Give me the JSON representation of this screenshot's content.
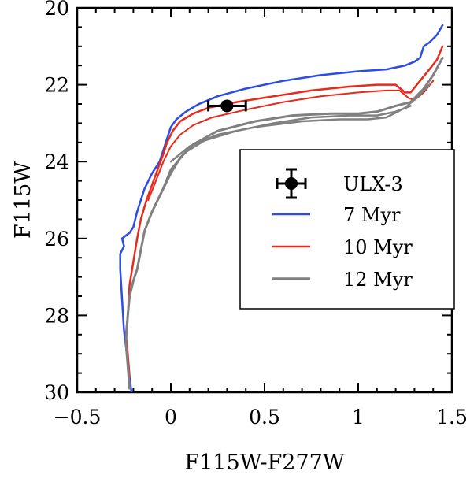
{
  "chart_data": {
    "type": "line",
    "xlabel": "F115W-F277W",
    "ylabel": "F115W",
    "xlim": [
      -0.5,
      1.5
    ],
    "ylim": [
      30,
      20
    ],
    "y_inverted": true,
    "x_ticks": [
      -0.5,
      0,
      0.5,
      1,
      1.5
    ],
    "x_tick_labels": [
      "−0.5",
      "0",
      "0.5",
      "1",
      "1.5"
    ],
    "y_ticks": [
      20,
      22,
      24,
      26,
      28,
      30
    ],
    "y_tick_labels": [
      "20",
      "22",
      "24",
      "26",
      "28",
      "30"
    ],
    "legend": {
      "position": "center-right",
      "entries": [
        {
          "label": "ULX-3",
          "kind": "errorbar-point",
          "color": "#000000"
        },
        {
          "label": "7 Myr",
          "kind": "line",
          "color": "#2b4ce6"
        },
        {
          "label": "10 Myr",
          "kind": "line",
          "color": "#e8291c"
        },
        {
          "label": "12 Myr",
          "kind": "line",
          "color": "#808080"
        }
      ]
    },
    "point": {
      "name": "ULX-3",
      "color": "#000000",
      "x": 0.3,
      "y": 22.55,
      "xerr": [
        0.1,
        0.1
      ],
      "yerr": [
        0.1,
        0.1
      ]
    },
    "series": [
      {
        "name": "7 Myr",
        "color": "#2b4ce6",
        "width": 2.5,
        "points": [
          [
            -0.21,
            30.0
          ],
          [
            -0.22,
            29.6
          ],
          [
            -0.23,
            29.2
          ],
          [
            -0.25,
            28.4
          ],
          [
            -0.26,
            27.6
          ],
          [
            -0.27,
            26.8
          ],
          [
            -0.27,
            26.4
          ],
          [
            -0.25,
            26.2
          ],
          [
            -0.26,
            26.0
          ],
          [
            -0.22,
            25.85
          ],
          [
            -0.2,
            25.7
          ],
          [
            -0.18,
            25.3
          ],
          [
            -0.16,
            25.0
          ],
          [
            -0.14,
            24.7
          ],
          [
            -0.1,
            24.3
          ],
          [
            -0.06,
            24.0
          ],
          [
            -0.04,
            23.7
          ],
          [
            -0.02,
            23.4
          ],
          [
            0.0,
            23.1
          ],
          [
            0.03,
            22.9
          ],
          [
            0.08,
            22.7
          ],
          [
            0.15,
            22.5
          ],
          [
            0.25,
            22.3
          ],
          [
            0.4,
            22.1
          ],
          [
            0.6,
            21.9
          ],
          [
            0.8,
            21.75
          ],
          [
            1.0,
            21.65
          ],
          [
            1.15,
            21.6
          ],
          [
            1.25,
            21.5
          ],
          [
            1.3,
            21.4
          ],
          [
            1.33,
            21.3
          ],
          [
            1.35,
            21.0
          ],
          [
            1.38,
            20.9
          ],
          [
            1.42,
            20.7
          ],
          [
            1.45,
            20.45
          ]
        ]
      },
      {
        "name": "10 Myr",
        "color": "#e8291c",
        "width": 2.5,
        "points": [
          [
            -0.22,
            29.6
          ],
          [
            -0.23,
            29.0
          ],
          [
            -0.24,
            28.5
          ],
          [
            -0.23,
            28.0
          ],
          [
            -0.22,
            27.2
          ],
          [
            -0.2,
            26.6
          ],
          [
            -0.18,
            26.0
          ],
          [
            -0.16,
            25.5
          ],
          [
            -0.13,
            25.0
          ],
          [
            -0.1,
            24.6
          ],
          [
            -0.07,
            24.2
          ],
          [
            -0.04,
            23.8
          ],
          [
            -0.02,
            23.5
          ],
          [
            0.01,
            23.2
          ],
          [
            0.05,
            22.95
          ],
          [
            0.12,
            22.75
          ],
          [
            0.2,
            22.6
          ],
          [
            0.35,
            22.45
          ],
          [
            0.55,
            22.3
          ],
          [
            0.75,
            22.15
          ],
          [
            0.95,
            22.05
          ],
          [
            1.1,
            22.0
          ],
          [
            1.2,
            22.0
          ],
          [
            1.25,
            22.2
          ],
          [
            1.28,
            22.2
          ],
          [
            1.33,
            21.9
          ],
          [
            1.38,
            21.6
          ],
          [
            1.42,
            21.35
          ],
          [
            1.45,
            21.0
          ]
        ]
      },
      {
        "name": "10 Myr",
        "color": "#e8291c",
        "width": 2.0,
        "points": [
          [
            -0.12,
            25.0
          ],
          [
            -0.08,
            24.5
          ],
          [
            -0.04,
            24.0
          ],
          [
            0.0,
            23.6
          ],
          [
            0.05,
            23.3
          ],
          [
            0.12,
            23.05
          ],
          [
            0.22,
            22.85
          ],
          [
            0.4,
            22.65
          ],
          [
            0.6,
            22.45
          ],
          [
            0.8,
            22.3
          ],
          [
            1.0,
            22.2
          ],
          [
            1.15,
            22.15
          ],
          [
            1.22,
            22.15
          ],
          [
            1.27,
            22.35
          ],
          [
            1.3,
            22.4
          ],
          [
            1.35,
            22.2
          ],
          [
            1.4,
            21.9
          ]
        ]
      },
      {
        "name": "12 Myr",
        "color": "#808080",
        "width": 3.0,
        "points": [
          [
            -0.22,
            29.9
          ],
          [
            -0.23,
            29.3
          ],
          [
            -0.24,
            28.7
          ],
          [
            -0.23,
            28.0
          ],
          [
            -0.22,
            27.5
          ],
          [
            -0.2,
            27.1
          ],
          [
            -0.18,
            26.8
          ],
          [
            -0.16,
            26.3
          ],
          [
            -0.14,
            25.8
          ],
          [
            -0.1,
            25.3
          ],
          [
            -0.05,
            24.8
          ],
          [
            0.0,
            24.3
          ],
          [
            0.05,
            23.9
          ],
          [
            0.12,
            23.55
          ],
          [
            0.25,
            23.2
          ],
          [
            0.45,
            22.95
          ],
          [
            0.65,
            22.8
          ],
          [
            0.85,
            22.75
          ],
          [
            1.0,
            22.75
          ],
          [
            1.1,
            22.7
          ],
          [
            1.2,
            22.55
          ],
          [
            1.28,
            22.45
          ],
          [
            1.35,
            22.1
          ],
          [
            1.4,
            21.75
          ],
          [
            1.45,
            21.3
          ]
        ]
      },
      {
        "name": "12 Myr",
        "color": "#808080",
        "width": 2.5,
        "points": [
          [
            -0.05,
            24.8
          ],
          [
            0.0,
            24.2
          ],
          [
            0.08,
            23.75
          ],
          [
            0.18,
            23.45
          ],
          [
            0.35,
            23.2
          ],
          [
            0.55,
            23.0
          ],
          [
            0.75,
            22.85
          ],
          [
            0.95,
            22.8
          ],
          [
            1.1,
            22.8
          ],
          [
            1.2,
            22.7
          ],
          [
            1.28,
            22.55
          ]
        ]
      },
      {
        "name": "12 Myr",
        "color": "#808080",
        "width": 2.5,
        "points": [
          [
            0.0,
            24.0
          ],
          [
            0.1,
            23.6
          ],
          [
            0.25,
            23.3
          ],
          [
            0.45,
            23.1
          ],
          [
            0.7,
            22.95
          ],
          [
            0.9,
            22.9
          ],
          [
            1.05,
            22.9
          ],
          [
            1.15,
            22.85
          ],
          [
            1.25,
            22.6
          ],
          [
            1.32,
            22.3
          ],
          [
            1.38,
            22.0
          ]
        ]
      }
    ]
  }
}
